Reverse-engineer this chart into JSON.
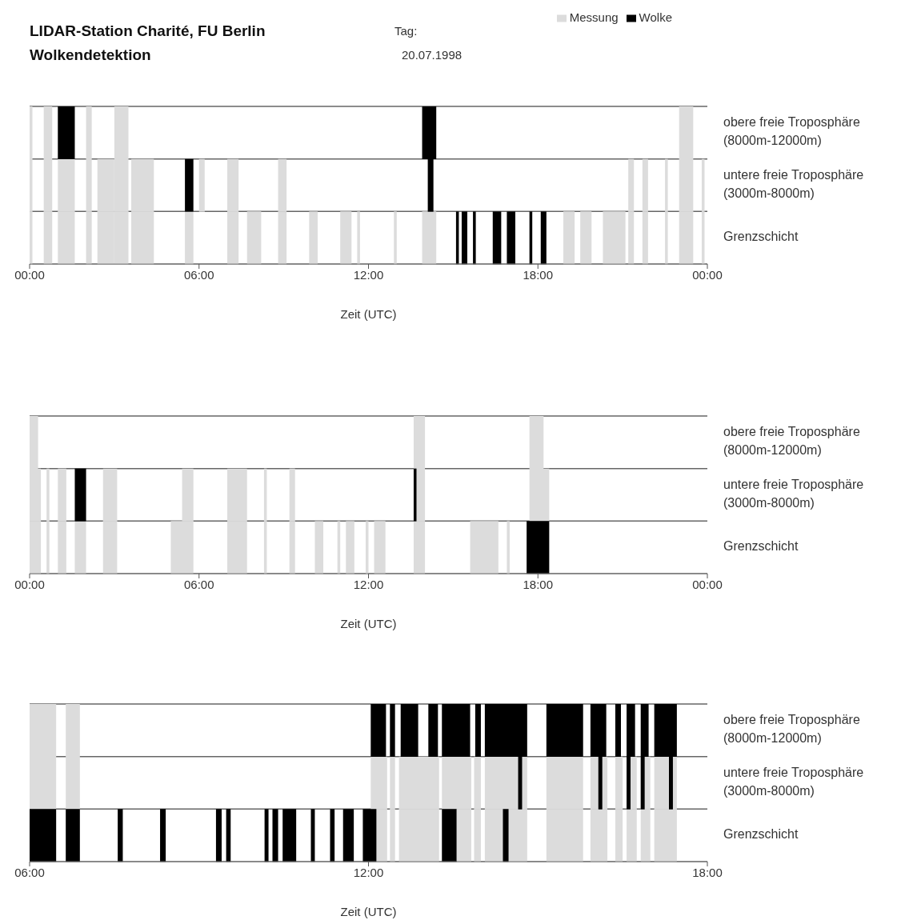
{
  "chart_data": [
    {
      "type": "bar",
      "orientation": "horizontal",
      "title": "LIDAR-Station Charité, FU Berlin",
      "subtitle": "Wolkendetektion",
      "xlabel": "Zeit (UTC)",
      "annotations": [
        "Tag:",
        "20.07.1998"
      ],
      "categories": [
        "obere freie Troposphäre\n(8000m-12000m)",
        "untere freie Troposphäre\n(3000m-8000m)",
        "Grenzschicht"
      ],
      "xlim": [
        0,
        24
      ],
      "xticks": [
        {
          "value": 0,
          "label": "00:00"
        },
        {
          "value": 6,
          "label": "06:00"
        },
        {
          "value": 12,
          "label": "12:00"
        },
        {
          "value": 18,
          "label": "18:00"
        },
        {
          "value": 24,
          "label": "00:00"
        }
      ],
      "grid": "y",
      "legend": "top",
      "series": [
        {
          "name": "Messung",
          "color": "#dcdcdc",
          "base": [
            0,
            0,
            0
          ],
          "values": [
            0.1,
            0.1,
            0.1
          ]
        },
        {
          "color": "#dcdcdc",
          "base": [
            0.5,
            0.5,
            0.5
          ],
          "values": [
            0.3,
            0.3,
            0.3
          ]
        },
        {
          "color": "#dcdcdc",
          "base": [
            2,
            1,
            1
          ],
          "values": [
            0.2,
            0.6,
            0.6
          ]
        },
        {
          "color": "#dcdcdc",
          "base": [
            3,
            2,
            2
          ],
          "values": [
            0.5,
            0.2,
            0.2
          ]
        },
        {
          "color": "#dcdcdc",
          "base": [
            23,
            2.4,
            2.4
          ],
          "values": [
            0.5,
            0.6,
            0.6
          ]
        },
        {
          "color": "#dcdcdc",
          "base": [
            null,
            3,
            3
          ],
          "values": [
            null,
            0.5,
            0.5
          ]
        },
        {
          "color": "#dcdcdc",
          "base": [
            null,
            3.6,
            3.6
          ],
          "values": [
            null,
            0.8,
            0.8
          ]
        },
        {
          "color": "#dcdcdc",
          "base": [
            null,
            6,
            5.5
          ],
          "values": [
            null,
            0.2,
            0.3
          ]
        },
        {
          "color": "#dcdcdc",
          "base": [
            null,
            7,
            7
          ],
          "values": [
            null,
            0.4,
            0.4
          ]
        },
        {
          "color": "#dcdcdc",
          "base": [
            null,
            8.8,
            7.7
          ],
          "values": [
            null,
            0.3,
            0.5
          ]
        },
        {
          "color": "#dcdcdc",
          "base": [
            null,
            21.2,
            8.8
          ],
          "values": [
            null,
            0.2,
            0.3
          ]
        },
        {
          "color": "#dcdcdc",
          "base": [
            null,
            21.7,
            9.9
          ],
          "values": [
            null,
            0.2,
            0.3
          ]
        },
        {
          "color": "#dcdcdc",
          "base": [
            null,
            22.5,
            11
          ],
          "values": [
            null,
            0.1,
            0.4
          ]
        },
        {
          "color": "#dcdcdc",
          "base": [
            null,
            23,
            11.6
          ],
          "values": [
            null,
            0.5,
            0.1
          ]
        },
        {
          "color": "#dcdcdc",
          "base": [
            null,
            23.8,
            12.9
          ],
          "values": [
            null,
            0.1,
            0.1
          ]
        },
        {
          "color": "#dcdcdc",
          "base": [
            null,
            null,
            13.9
          ],
          "values": [
            null,
            null,
            0.5
          ]
        },
        {
          "color": "#dcdcdc",
          "base": [
            null,
            null,
            18.9
          ],
          "values": [
            null,
            null,
            0.4
          ]
        },
        {
          "color": "#dcdcdc",
          "base": [
            null,
            null,
            19.5
          ],
          "values": [
            null,
            null,
            0.4
          ]
        },
        {
          "color": "#dcdcdc",
          "base": [
            null,
            null,
            20.3
          ],
          "values": [
            null,
            null,
            0.8
          ]
        },
        {
          "color": "#dcdcdc",
          "base": [
            null,
            null,
            21.2
          ],
          "values": [
            null,
            null,
            0.2
          ]
        },
        {
          "color": "#dcdcdc",
          "base": [
            null,
            null,
            21.7
          ],
          "values": [
            null,
            null,
            0.2
          ]
        },
        {
          "color": "#dcdcdc",
          "base": [
            null,
            null,
            22.5
          ],
          "values": [
            null,
            null,
            0.1
          ]
        },
        {
          "color": "#dcdcdc",
          "base": [
            null,
            null,
            23
          ],
          "values": [
            null,
            null,
            0.5
          ]
        },
        {
          "color": "#dcdcdc",
          "base": [
            null,
            null,
            23.8
          ],
          "values": [
            null,
            null,
            0.1
          ]
        },
        {
          "name": "Wolke",
          "color": "#000000",
          "base": [
            1,
            5.5,
            15.1
          ],
          "values": [
            0.6,
            0.3,
            0.1
          ]
        },
        {
          "color": "#000000",
          "base": [
            13.9,
            14.1,
            15.3
          ],
          "values": [
            0.5,
            0.2,
            0.2
          ]
        },
        {
          "color": "#000000",
          "base": [
            null,
            null,
            15.7
          ],
          "values": [
            null,
            null,
            0.1
          ]
        },
        {
          "color": "#000000",
          "base": [
            null,
            null,
            16.4
          ],
          "values": [
            null,
            null,
            0.3
          ]
        },
        {
          "color": "#000000",
          "base": [
            null,
            null,
            16.9
          ],
          "values": [
            null,
            null,
            0.3
          ]
        },
        {
          "color": "#000000",
          "base": [
            null,
            null,
            17.7
          ],
          "values": [
            null,
            null,
            0.1
          ]
        },
        {
          "color": "#000000",
          "base": [
            null,
            null,
            18.1
          ],
          "values": [
            null,
            null,
            0.2
          ]
        }
      ]
    },
    {
      "type": "bar",
      "orientation": "horizontal",
      "xlabel": "Zeit (UTC)",
      "categories": [
        "obere freie Troposphäre\n(8000m-12000m)",
        "untere freie Troposphäre\n(3000m-8000m)",
        "Grenzschicht"
      ],
      "xlim": [
        0,
        24
      ],
      "xticks": [
        {
          "value": 0,
          "label": "00:00"
        },
        {
          "value": 6,
          "label": "06:00"
        },
        {
          "value": 12,
          "label": "12:00"
        },
        {
          "value": 18,
          "label": "18:00"
        },
        {
          "value": 24,
          "label": "00:00"
        }
      ],
      "grid": "y",
      "series": [
        {
          "color": "#dcdcdc",
          "base": [
            0,
            0,
            0
          ],
          "values": [
            0.3,
            0.4,
            0.4
          ]
        },
        {
          "color": "#dcdcdc",
          "base": [
            13.6,
            0.6,
            0.6
          ],
          "values": [
            0.4,
            0.1,
            0.1
          ]
        },
        {
          "color": "#dcdcdc",
          "base": [
            17.7,
            1,
            1
          ],
          "values": [
            0.5,
            0.3,
            0.3
          ]
        },
        {
          "color": "#dcdcdc",
          "base": [
            null,
            2.6,
            1.6
          ],
          "values": [
            null,
            0.5,
            0.4
          ]
        },
        {
          "color": "#dcdcdc",
          "base": [
            null,
            5.4,
            2.6
          ],
          "values": [
            null,
            0.4,
            0.5
          ]
        },
        {
          "color": "#dcdcdc",
          "base": [
            null,
            7,
            5
          ],
          "values": [
            null,
            0.7,
            0.8
          ]
        },
        {
          "color": "#dcdcdc",
          "base": [
            null,
            8.3,
            7
          ],
          "values": [
            null,
            0.1,
            0.7
          ]
        },
        {
          "color": "#dcdcdc",
          "base": [
            null,
            9.2,
            8.3
          ],
          "values": [
            null,
            0.2,
            0.1
          ]
        },
        {
          "color": "#dcdcdc",
          "base": [
            null,
            13.6,
            9.2
          ],
          "values": [
            null,
            0.4,
            0.2
          ]
        },
        {
          "color": "#dcdcdc",
          "base": [
            null,
            17.7,
            10.1
          ],
          "values": [
            null,
            0.7,
            0.3
          ]
        },
        {
          "color": "#dcdcdc",
          "base": [
            null,
            null,
            10.9
          ],
          "values": [
            null,
            null,
            0.1
          ]
        },
        {
          "color": "#dcdcdc",
          "base": [
            null,
            null,
            11.2
          ],
          "values": [
            null,
            null,
            0.3
          ]
        },
        {
          "color": "#dcdcdc",
          "base": [
            null,
            null,
            11.9
          ],
          "values": [
            null,
            null,
            0.1
          ]
        },
        {
          "color": "#dcdcdc",
          "base": [
            null,
            null,
            12.2
          ],
          "values": [
            null,
            null,
            0.4
          ]
        },
        {
          "color": "#dcdcdc",
          "base": [
            null,
            null,
            13.6
          ],
          "values": [
            null,
            null,
            0.4
          ]
        },
        {
          "color": "#dcdcdc",
          "base": [
            null,
            null,
            15.6
          ],
          "values": [
            null,
            null,
            1
          ]
        },
        {
          "color": "#dcdcdc",
          "base": [
            null,
            null,
            16.9
          ],
          "values": [
            null,
            null,
            0.1
          ]
        },
        {
          "color": "#000000",
          "base": [
            null,
            1.6,
            17.6
          ],
          "values": [
            null,
            0.4,
            0.8
          ]
        },
        {
          "color": "#000000",
          "base": [
            null,
            13.6,
            null
          ],
          "values": [
            null,
            0.1,
            null
          ]
        }
      ]
    },
    {
      "type": "bar",
      "orientation": "horizontal",
      "xlabel": "Zeit (UTC)",
      "categories": [
        "obere freie Troposphäre\n(8000m-12000m)",
        "untere freie Troposphäre\n(3000m-8000m)",
        "Grenzschicht"
      ],
      "xlim": [
        6,
        18
      ],
      "xticks": [
        {
          "value": 6,
          "label": "06:00"
        },
        {
          "value": 12,
          "label": "12:00"
        },
        {
          "value": 18,
          "label": "18:00"
        }
      ],
      "grid": "y",
      "series": [
        {
          "color": "#dcdcdc",
          "base": [
            6,
            6,
            12.04
          ],
          "values": [
            0.47,
            0.47,
            0.29
          ]
        },
        {
          "color": "#dcdcdc",
          "base": [
            6.64,
            6.64,
            12.38
          ],
          "values": [
            0.25,
            0.25,
            0.09
          ]
        },
        {
          "color": "#dcdcdc",
          "base": [
            null,
            12.04,
            12.54
          ],
          "values": [
            null,
            0.29,
            0.71
          ]
        },
        {
          "color": "#dcdcdc",
          "base": [
            null,
            12.38,
            13.56
          ],
          "values": [
            null,
            0.09,
            0.26
          ]
        },
        {
          "color": "#dcdcdc",
          "base": [
            null,
            12.54,
            13.87
          ],
          "values": [
            null,
            0.71,
            0.12
          ]
        },
        {
          "color": "#dcdcdc",
          "base": [
            null,
            13.3,
            14.06
          ],
          "values": [
            null,
            0.52,
            0.75
          ]
        },
        {
          "color": "#dcdcdc",
          "base": [
            null,
            13.87,
            15.15
          ],
          "values": [
            null,
            0.12,
            0.65
          ]
        },
        {
          "color": "#dcdcdc",
          "base": [
            null,
            14.06,
            15.93
          ],
          "values": [
            null,
            0.75,
            0.3
          ]
        },
        {
          "color": "#dcdcdc",
          "base": [
            null,
            15.15,
            16.37
          ],
          "values": [
            null,
            0.65,
            0.13
          ]
        },
        {
          "color": "#dcdcdc",
          "base": [
            null,
            15.93,
            16.57
          ],
          "values": [
            null,
            0.3,
            0.18
          ]
        },
        {
          "color": "#dcdcdc",
          "base": [
            null,
            16.37,
            16.82
          ],
          "values": [
            null,
            0.13,
            0.17
          ]
        },
        {
          "color": "#dcdcdc",
          "base": [
            null,
            16.57,
            17.06
          ],
          "values": [
            null,
            0.18,
            0.4
          ]
        },
        {
          "color": "#dcdcdc",
          "base": [
            null,
            16.82,
            null
          ],
          "values": [
            null,
            0.17,
            null
          ]
        },
        {
          "color": "#dcdcdc",
          "base": [
            null,
            17.06,
            null
          ],
          "values": [
            null,
            0.4,
            null
          ]
        },
        {
          "color": "#000000",
          "base": [
            12.04,
            14.65,
            6
          ],
          "values": [
            0.27,
            0.07,
            0.47
          ]
        },
        {
          "color": "#000000",
          "base": [
            12.38,
            16.07,
            6.64
          ],
          "values": [
            0.09,
            0.07,
            0.25
          ]
        },
        {
          "color": "#000000",
          "base": [
            12.57,
            16.57,
            7.56
          ],
          "values": [
            0.31,
            0.07,
            0.09
          ]
        },
        {
          "color": "#000000",
          "base": [
            13.06,
            16.82,
            8.31
          ],
          "values": [
            0.17,
            0.07,
            0.1
          ]
        },
        {
          "color": "#000000",
          "base": [
            13.3,
            17.32,
            9.3
          ],
          "values": [
            0.5,
            0.07,
            0.1
          ]
        },
        {
          "color": "#000000",
          "base": [
            13.89,
            null,
            9.48
          ],
          "values": [
            0.1,
            null,
            0.08
          ]
        },
        {
          "color": "#000000",
          "base": [
            14.06,
            null,
            10.16
          ],
          "values": [
            0.75,
            null,
            0.07
          ]
        },
        {
          "color": "#000000",
          "base": [
            15.15,
            null,
            10.3
          ],
          "values": [
            0.65,
            null,
            0.1
          ]
        },
        {
          "color": "#000000",
          "base": [
            15.93,
            null,
            10.48
          ],
          "values": [
            0.28,
            null,
            0.24
          ]
        },
        {
          "color": "#000000",
          "base": [
            16.37,
            null,
            10.98
          ],
          "values": [
            0.1,
            null,
            0.07
          ]
        },
        {
          "color": "#000000",
          "base": [
            16.57,
            null,
            11.32
          ],
          "values": [
            0.15,
            null,
            0.08
          ]
        },
        {
          "color": "#000000",
          "base": [
            16.82,
            null,
            11.55
          ],
          "values": [
            0.14,
            null,
            0.19
          ]
        },
        {
          "color": "#000000",
          "base": [
            17.06,
            null,
            11.9
          ],
          "values": [
            0.4,
            null,
            0.24
          ]
        },
        {
          "color": "#000000",
          "base": [
            null,
            null,
            13.3
          ],
          "values": [
            null,
            null,
            0.26
          ]
        },
        {
          "color": "#000000",
          "base": [
            null,
            null,
            14.38
          ],
          "values": [
            null,
            null,
            0.1
          ]
        }
      ]
    }
  ]
}
